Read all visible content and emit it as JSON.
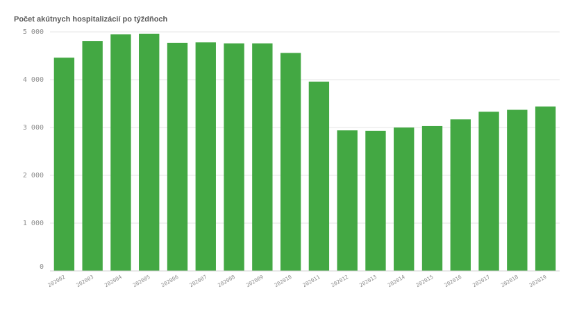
{
  "chart_data": {
    "type": "bar",
    "title": "Počet akútnych hospitalizácií po týždňoch",
    "xlabel": "",
    "ylabel": "",
    "categories": [
      "202002",
      "202003",
      "202004",
      "202005",
      "202006",
      "202007",
      "202008",
      "202009",
      "202010",
      "202011",
      "202012",
      "202013",
      "202014",
      "202015",
      "202016",
      "202017",
      "202018",
      "202019"
    ],
    "values": [
      4460,
      4810,
      4950,
      4960,
      4770,
      4780,
      4760,
      4760,
      4560,
      3960,
      2940,
      2930,
      3000,
      3030,
      3170,
      3330,
      3370,
      3440
    ],
    "ylim": [
      0,
      5000
    ],
    "yticks": [
      0,
      1000,
      2000,
      3000,
      4000,
      5000
    ],
    "ytick_labels": [
      "0",
      "1 000",
      "2 000",
      "3 000",
      "4 000",
      "5 000"
    ],
    "bar_color": "#43a843",
    "grid": true
  }
}
